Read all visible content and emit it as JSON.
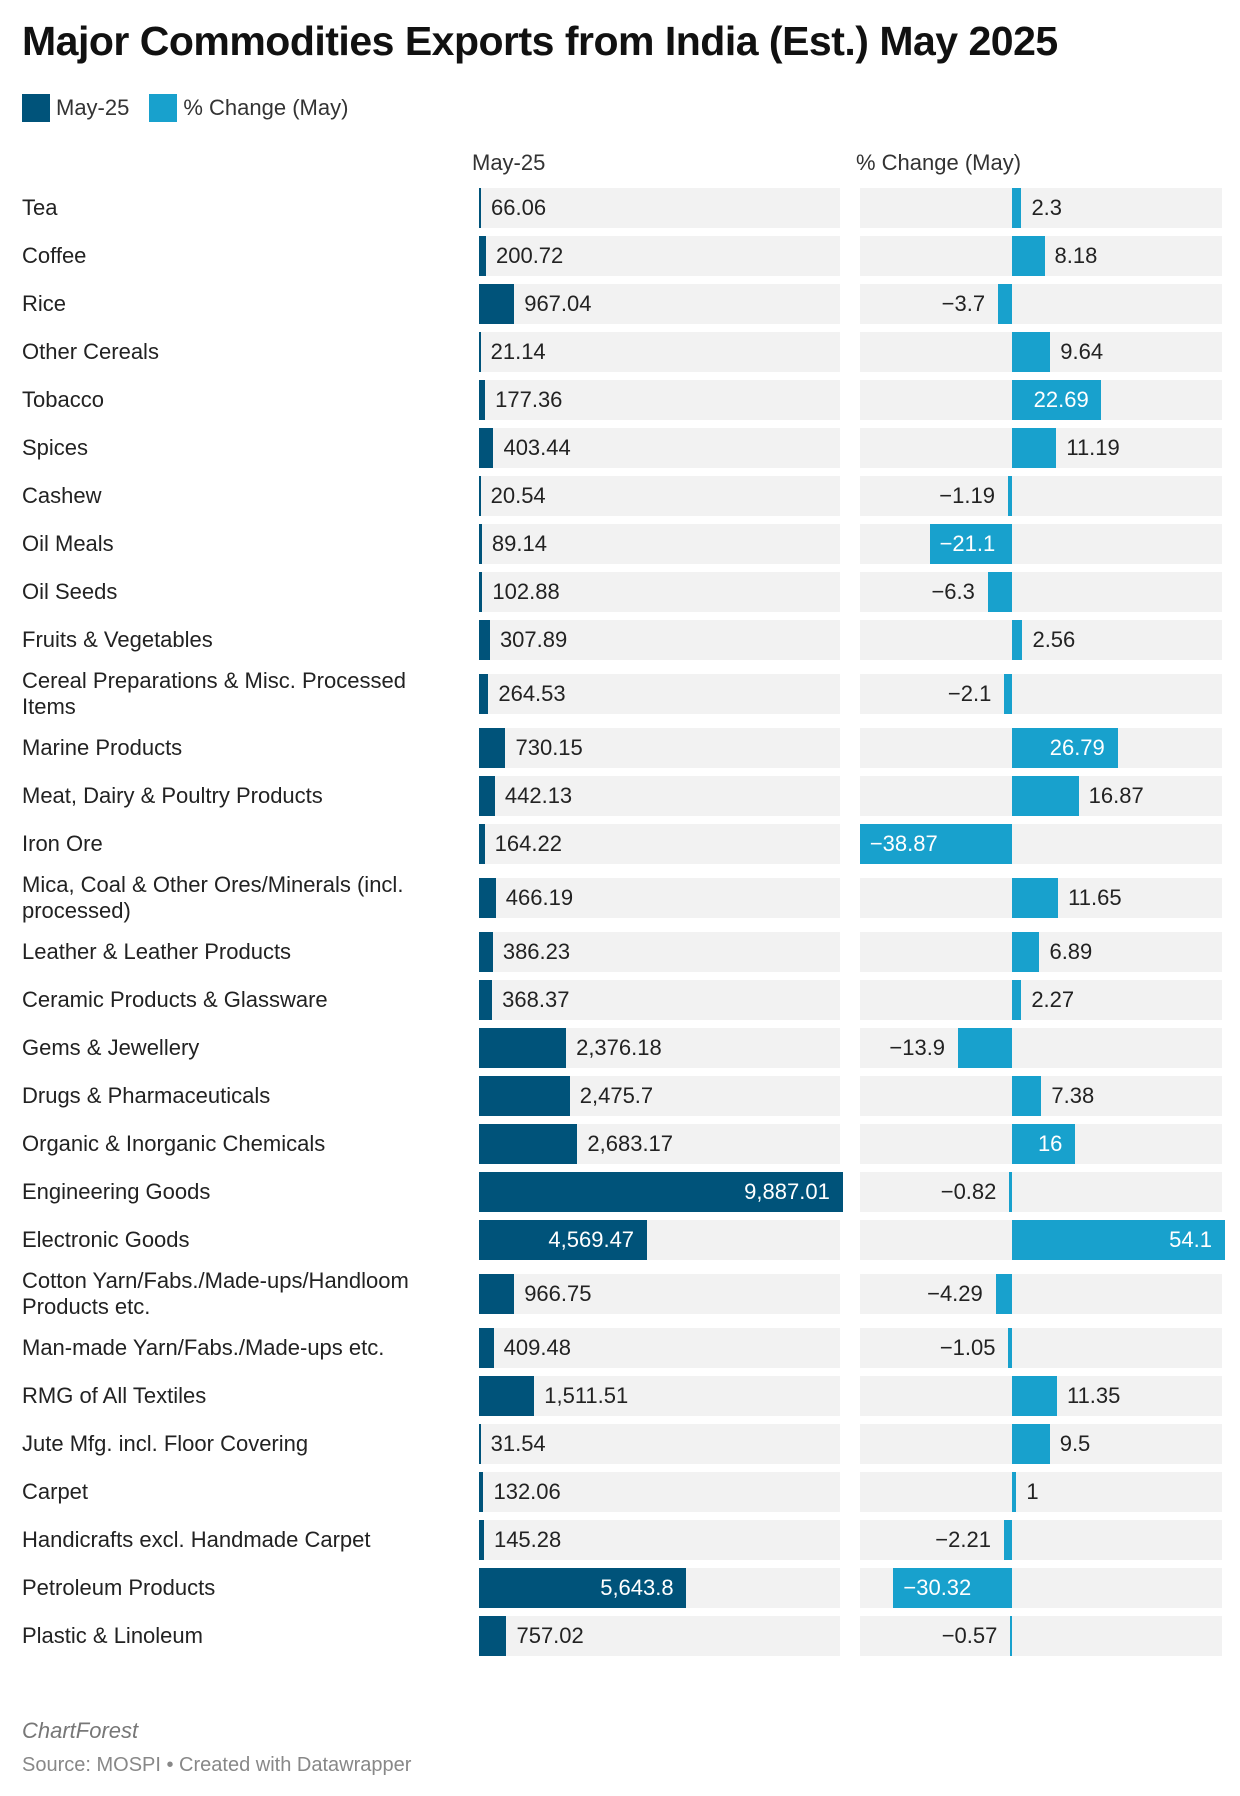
{
  "title": "Major Commodities Exports from India (Est.) May 2025",
  "legend": [
    {
      "label": "May-25",
      "color": "#00537a"
    },
    {
      "label": "% Change (May)",
      "color": "#18a1cd"
    }
  ],
  "footer": {
    "brand": "ChartForest",
    "source": "Source: MOSPI • Created with Datawrapper"
  },
  "chart_data": {
    "type": "bar",
    "columns": [
      "May-25",
      "% Change (May)"
    ],
    "col1_range": [
      0,
      9887.01
    ],
    "col2_range": [
      -38.87,
      54.1
    ],
    "categories": [
      "Tea",
      "Coffee",
      "Rice",
      "Other Cereals",
      "Tobacco",
      "Spices",
      "Cashew",
      "Oil Meals",
      "Oil Seeds",
      "Fruits & Vegetables",
      "Cereal Preparations & Misc. Processed Items",
      "Marine Products",
      "Meat, Dairy & Poultry Products",
      "Iron Ore",
      "Mica, Coal & Other Ores/Minerals (incl. processed)",
      "Leather & Leather Products",
      "Ceramic Products & Glassware",
      "Gems & Jewellery",
      "Drugs & Pharmaceuticals",
      "Organic & Inorganic Chemicals",
      "Engineering Goods",
      "Electronic Goods",
      "Cotton Yarn/Fabs./Made-ups/Handloom Products etc.",
      "Man-made Yarn/Fabs./Made-ups etc.",
      "RMG of All Textiles",
      "Jute Mfg. incl. Floor Covering",
      "Carpet",
      "Handicrafts excl. Handmade Carpet",
      "Petroleum Products",
      "Plastic & Linoleum"
    ],
    "series": [
      {
        "name": "May-25",
        "color": "#00537a",
        "values": [
          66.06,
          200.72,
          967.04,
          21.14,
          177.36,
          403.44,
          20.54,
          89.14,
          102.88,
          307.89,
          264.53,
          730.15,
          442.13,
          164.22,
          466.19,
          386.23,
          368.37,
          2376.18,
          2475.7,
          2683.17,
          9887.01,
          4569.47,
          966.75,
          409.48,
          1511.51,
          31.54,
          132.06,
          145.28,
          5643.8,
          757.02
        ]
      },
      {
        "name": "% Change (May)",
        "color": "#18a1cd",
        "values": [
          2.3,
          8.18,
          -3.7,
          9.64,
          22.69,
          11.19,
          -1.19,
          -21.1,
          -6.3,
          2.56,
          -2.1,
          26.79,
          16.87,
          -38.87,
          11.65,
          6.89,
          2.27,
          -13.9,
          7.38,
          16,
          -0.82,
          54.1,
          -4.29,
          -1.05,
          11.35,
          9.5,
          1,
          -2.21,
          -30.32,
          -0.57
        ]
      }
    ]
  }
}
